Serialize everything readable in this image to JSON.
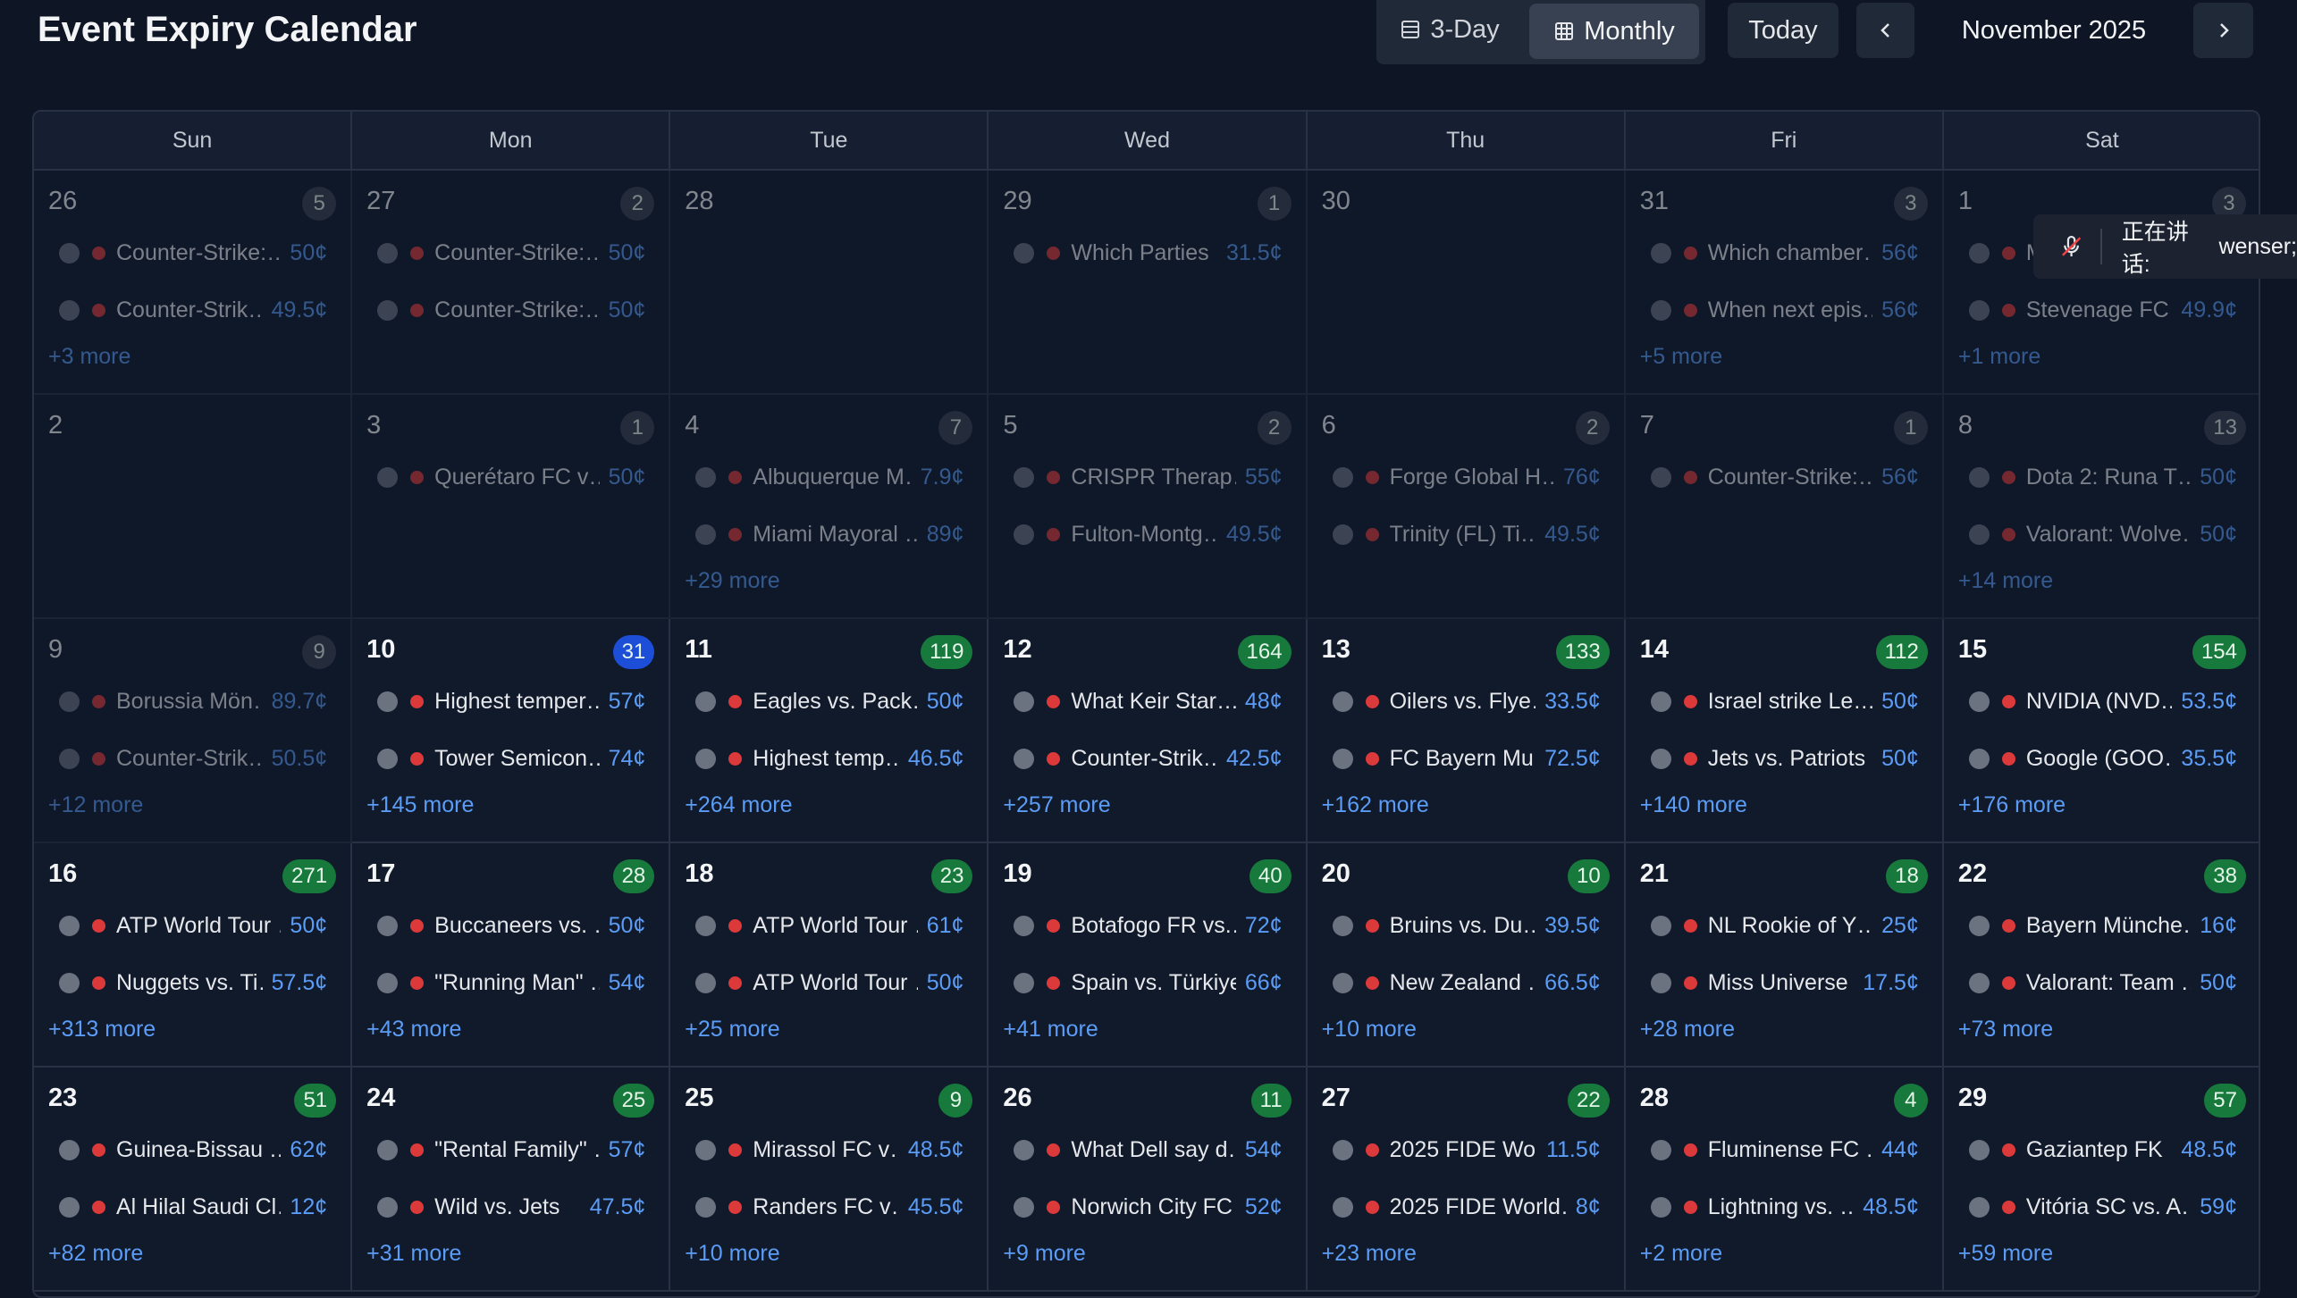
{
  "header": {
    "title": "Event Expiry Calendar",
    "views": [
      "3-Day",
      "Monthly"
    ],
    "today": "Today",
    "month": "November 2025"
  },
  "weekdays": [
    "Sun",
    "Mon",
    "Tue",
    "Wed",
    "Thu",
    "Fri",
    "Sat"
  ],
  "weeks": [
    [
      {
        "day": 26,
        "count": 5,
        "color": "#3b4250",
        "dim": true,
        "events": [
          {
            "name": "Counter-Strike:…",
            "price": "50¢"
          },
          {
            "name": "Counter-Strik…",
            "price": "49.5¢"
          }
        ],
        "more": "+3 more"
      },
      {
        "day": 27,
        "count": 2,
        "color": "#3b4250",
        "dim": true,
        "events": [
          {
            "name": "Counter-Strike:…",
            "price": "50¢"
          },
          {
            "name": "Counter-Strike:…",
            "price": "50¢"
          }
        ]
      },
      {
        "day": 28,
        "dim": true,
        "events": []
      },
      {
        "day": 29,
        "count": 1,
        "color": "#3b4250",
        "dim": true,
        "events": [
          {
            "name": "Which Parties …",
            "price": "31.5¢"
          }
        ]
      },
      {
        "day": 30,
        "dim": true,
        "events": []
      },
      {
        "day": 31,
        "count": 3,
        "color": "#3b4250",
        "dim": true,
        "events": [
          {
            "name": "Which chamber…",
            "price": "56¢"
          },
          {
            "name": "When next epis…",
            "price": "56¢"
          }
        ],
        "more": "+5 more"
      },
      {
        "day": 1,
        "count": 3,
        "color": "#3b4250",
        "dim": true,
        "events": [
          {
            "name": "M"
          },
          {
            "name": "Stevenage FC…",
            "price": "49.9¢"
          }
        ],
        "more": "+1 more"
      }
    ],
    [
      {
        "day": 2,
        "dim": true,
        "events": []
      },
      {
        "day": 3,
        "count": 1,
        "color": "#3b4250",
        "dim": true,
        "events": [
          {
            "name": "Querétaro FC v…",
            "price": "50¢"
          }
        ]
      },
      {
        "day": 4,
        "count": 7,
        "color": "#3b4250",
        "dim": true,
        "events": [
          {
            "name": "Albuquerque M…",
            "price": "7.9¢"
          },
          {
            "name": "Miami Mayoral …",
            "price": "89¢"
          }
        ],
        "more": "+29 more"
      },
      {
        "day": 5,
        "count": 2,
        "color": "#3b4250",
        "dim": true,
        "events": [
          {
            "name": "CRISPR Therap…",
            "price": "55¢"
          },
          {
            "name": "Fulton-Montg…",
            "price": "49.5¢"
          }
        ]
      },
      {
        "day": 6,
        "count": 2,
        "color": "#3b4250",
        "dim": true,
        "events": [
          {
            "name": "Forge Global H…",
            "price": "76¢"
          },
          {
            "name": "Trinity (FL) Ti…",
            "price": "49.5¢"
          }
        ]
      },
      {
        "day": 7,
        "count": 1,
        "color": "#3b4250",
        "dim": true,
        "events": [
          {
            "name": "Counter-Strike:…",
            "price": "56¢"
          }
        ]
      },
      {
        "day": 8,
        "count": 13,
        "color": "#3b4250",
        "dim": true,
        "events": [
          {
            "name": "Dota 2: Runa T…",
            "price": "50¢"
          },
          {
            "name": "Valorant: Wolve…",
            "price": "50¢"
          }
        ],
        "more": "+14 more"
      }
    ],
    [
      {
        "day": 9,
        "count": 9,
        "color": "#3b4250",
        "dim": true,
        "events": [
          {
            "name": "Borussia Mön…",
            "price": "89.7¢"
          },
          {
            "name": "Counter-Strik…",
            "price": "50.5¢"
          }
        ],
        "more": "+12 more"
      },
      {
        "day": 10,
        "count": 31,
        "color": "#1d4ed8",
        "events": [
          {
            "name": "Highest temper…",
            "price": "57¢"
          },
          {
            "name": "Tower Semicon…",
            "price": "74¢"
          }
        ],
        "more": "+145 more"
      },
      {
        "day": 11,
        "count": 119,
        "color": "#177a3c",
        "events": [
          {
            "name": "Eagles vs. Pack…",
            "price": "50¢"
          },
          {
            "name": "Highest temp…",
            "price": "46.5¢"
          }
        ],
        "more": "+264 more"
      },
      {
        "day": 12,
        "count": 164,
        "color": "#177a3c",
        "events": [
          {
            "name": "What Keir Star…",
            "price": "48¢"
          },
          {
            "name": "Counter-Strik…",
            "price": "42.5¢"
          }
        ],
        "more": "+257 more"
      },
      {
        "day": 13,
        "count": 133,
        "color": "#177a3c",
        "events": [
          {
            "name": "Oilers vs. Flye…",
            "price": "33.5¢"
          },
          {
            "name": "FC Bayern Mu…",
            "price": "72.5¢"
          }
        ],
        "more": "+162 more"
      },
      {
        "day": 14,
        "count": 112,
        "color": "#177a3c",
        "events": [
          {
            "name": "Israel strike Le…",
            "price": "50¢"
          },
          {
            "name": "Jets vs. Patriots",
            "price": "50¢"
          }
        ],
        "more": "+140 more"
      },
      {
        "day": 15,
        "count": 154,
        "color": "#177a3c",
        "events": [
          {
            "name": "NVIDIA (NVD…",
            "price": "53.5¢"
          },
          {
            "name": "Google (GOO…",
            "price": "35.5¢"
          }
        ],
        "more": "+176 more"
      }
    ],
    [
      {
        "day": 16,
        "count": 271,
        "color": "#177a3c",
        "events": [
          {
            "name": "ATP World Tour …",
            "price": "50¢"
          },
          {
            "name": "Nuggets vs. Ti…",
            "price": "57.5¢"
          }
        ],
        "more": "+313 more"
      },
      {
        "day": 17,
        "count": 28,
        "color": "#177a3c",
        "events": [
          {
            "name": "Buccaneers vs. …",
            "price": "50¢"
          },
          {
            "name": "\"Running Man\" …",
            "price": "54¢"
          }
        ],
        "more": "+43 more"
      },
      {
        "day": 18,
        "count": 23,
        "color": "#177a3c",
        "events": [
          {
            "name": "ATP World Tour …",
            "price": "61¢"
          },
          {
            "name": "ATP World Tour …",
            "price": "50¢"
          }
        ],
        "more": "+25 more"
      },
      {
        "day": 19,
        "count": 40,
        "color": "#177a3c",
        "events": [
          {
            "name": "Botafogo FR vs.…",
            "price": "72¢"
          },
          {
            "name": "Spain vs. Türkiye",
            "price": "66¢"
          }
        ],
        "more": "+41 more"
      },
      {
        "day": 20,
        "count": 10,
        "color": "#177a3c",
        "events": [
          {
            "name": "Bruins vs. Du…",
            "price": "39.5¢"
          },
          {
            "name": "New Zealand …",
            "price": "66.5¢"
          }
        ],
        "more": "+10 more"
      },
      {
        "day": 21,
        "count": 18,
        "color": "#177a3c",
        "events": [
          {
            "name": "NL Rookie of Y…",
            "price": "25¢"
          },
          {
            "name": "Miss Universe …",
            "price": "17.5¢"
          }
        ],
        "more": "+28 more"
      },
      {
        "day": 22,
        "count": 38,
        "color": "#177a3c",
        "events": [
          {
            "name": "Bayern Münche…",
            "price": "16¢"
          },
          {
            "name": "Valorant: Team …",
            "price": "50¢"
          }
        ],
        "more": "+73 more"
      }
    ],
    [
      {
        "day": 23,
        "count": 51,
        "color": "#177a3c",
        "events": [
          {
            "name": "Guinea-Bissau …",
            "price": "62¢"
          },
          {
            "name": "Al Hilal Saudi Cl…",
            "price": "12¢"
          }
        ],
        "more": "+82 more"
      },
      {
        "day": 24,
        "count": 25,
        "color": "#177a3c",
        "events": [
          {
            "name": "\"Rental Family\" …",
            "price": "57¢"
          },
          {
            "name": "Wild vs. Jets",
            "price": "47.5¢"
          }
        ],
        "more": "+31 more"
      },
      {
        "day": 25,
        "count": 9,
        "color": "#177a3c",
        "events": [
          {
            "name": "Mirassol FC v…",
            "price": "48.5¢"
          },
          {
            "name": "Randers FC v…",
            "price": "45.5¢"
          }
        ],
        "more": "+10 more"
      },
      {
        "day": 26,
        "count": 11,
        "color": "#177a3c",
        "events": [
          {
            "name": "What Dell say d…",
            "price": "54¢"
          },
          {
            "name": "Norwich City FC v…",
            "price": "52¢"
          }
        ],
        "more": "+9 more"
      },
      {
        "day": 27,
        "count": 22,
        "color": "#177a3c",
        "events": [
          {
            "name": "2025 FIDE Wo…",
            "price": "11.5¢"
          },
          {
            "name": "2025 FIDE World…",
            "price": "8¢"
          }
        ],
        "more": "+23 more"
      },
      {
        "day": 28,
        "count": 4,
        "color": "#177a3c",
        "events": [
          {
            "name": "Fluminense FC …",
            "price": "44¢"
          },
          {
            "name": "Lightning vs. …",
            "price": "48.5¢"
          }
        ],
        "more": "+2 more"
      },
      {
        "day": 29,
        "count": 57,
        "color": "#177a3c",
        "events": [
          {
            "name": "Gaziantep FK …",
            "price": "48.5¢"
          },
          {
            "name": "Vitória SC vs. A…",
            "price": "59¢"
          }
        ],
        "more": "+59 more"
      }
    ]
  ],
  "tooltip": {
    "label": "正在讲话:",
    "user": "wenser;"
  }
}
